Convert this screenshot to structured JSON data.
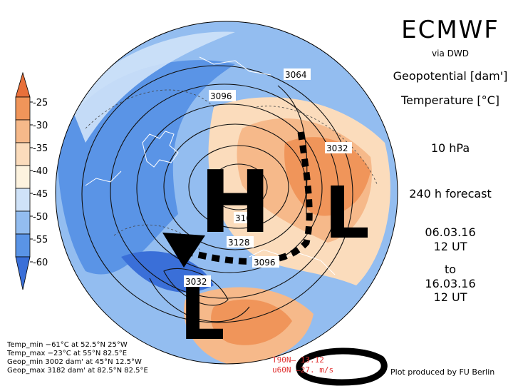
{
  "header": {
    "model": "ECMWF",
    "source": "via DWD",
    "field1": "Geopotential [dam']",
    "field2": "Temperature [°C]",
    "level": "10 hPa",
    "forecast": "240 h forecast",
    "init_date": "06.03.16",
    "init_time": "12 UT",
    "to_word": "to",
    "valid_date": "16.03.16",
    "valid_time": "12 UT"
  },
  "colorbar": {
    "labels": [
      "-25",
      "-30",
      "-35",
      "-40",
      "-45",
      "-50",
      "-55",
      "-60"
    ],
    "colors": [
      "#e8703a",
      "#f0955a",
      "#f6b98a",
      "#fbdcbc",
      "#fdf3df",
      "#cfe2f8",
      "#93bdf0",
      "#5a94e6",
      "#3a6fd8"
    ]
  },
  "stats": {
    "temp_min": "Temp_min −61°C at 52.5°N 25°W",
    "temp_max": "Temp_max −23°C at 55°N 82.5°E",
    "geop_min": "Geop_min 3002 dam' at 45°N 12.5°W",
    "geop_max": "Geop_max 3182 dam' at 82.5°N 82.5°E"
  },
  "credit": "Plot produced by FU Berlin",
  "partial_text": {
    "line1": "T90N– 13.12",
    "line2": "u60N –27. m/s"
  },
  "contour_labels": [
    "3064",
    "3096",
    "3032",
    "3128",
    "3096",
    "3032",
    "316"
  ],
  "annotations": {
    "high": "H",
    "low_east": "L",
    "low_south": "L"
  }
}
